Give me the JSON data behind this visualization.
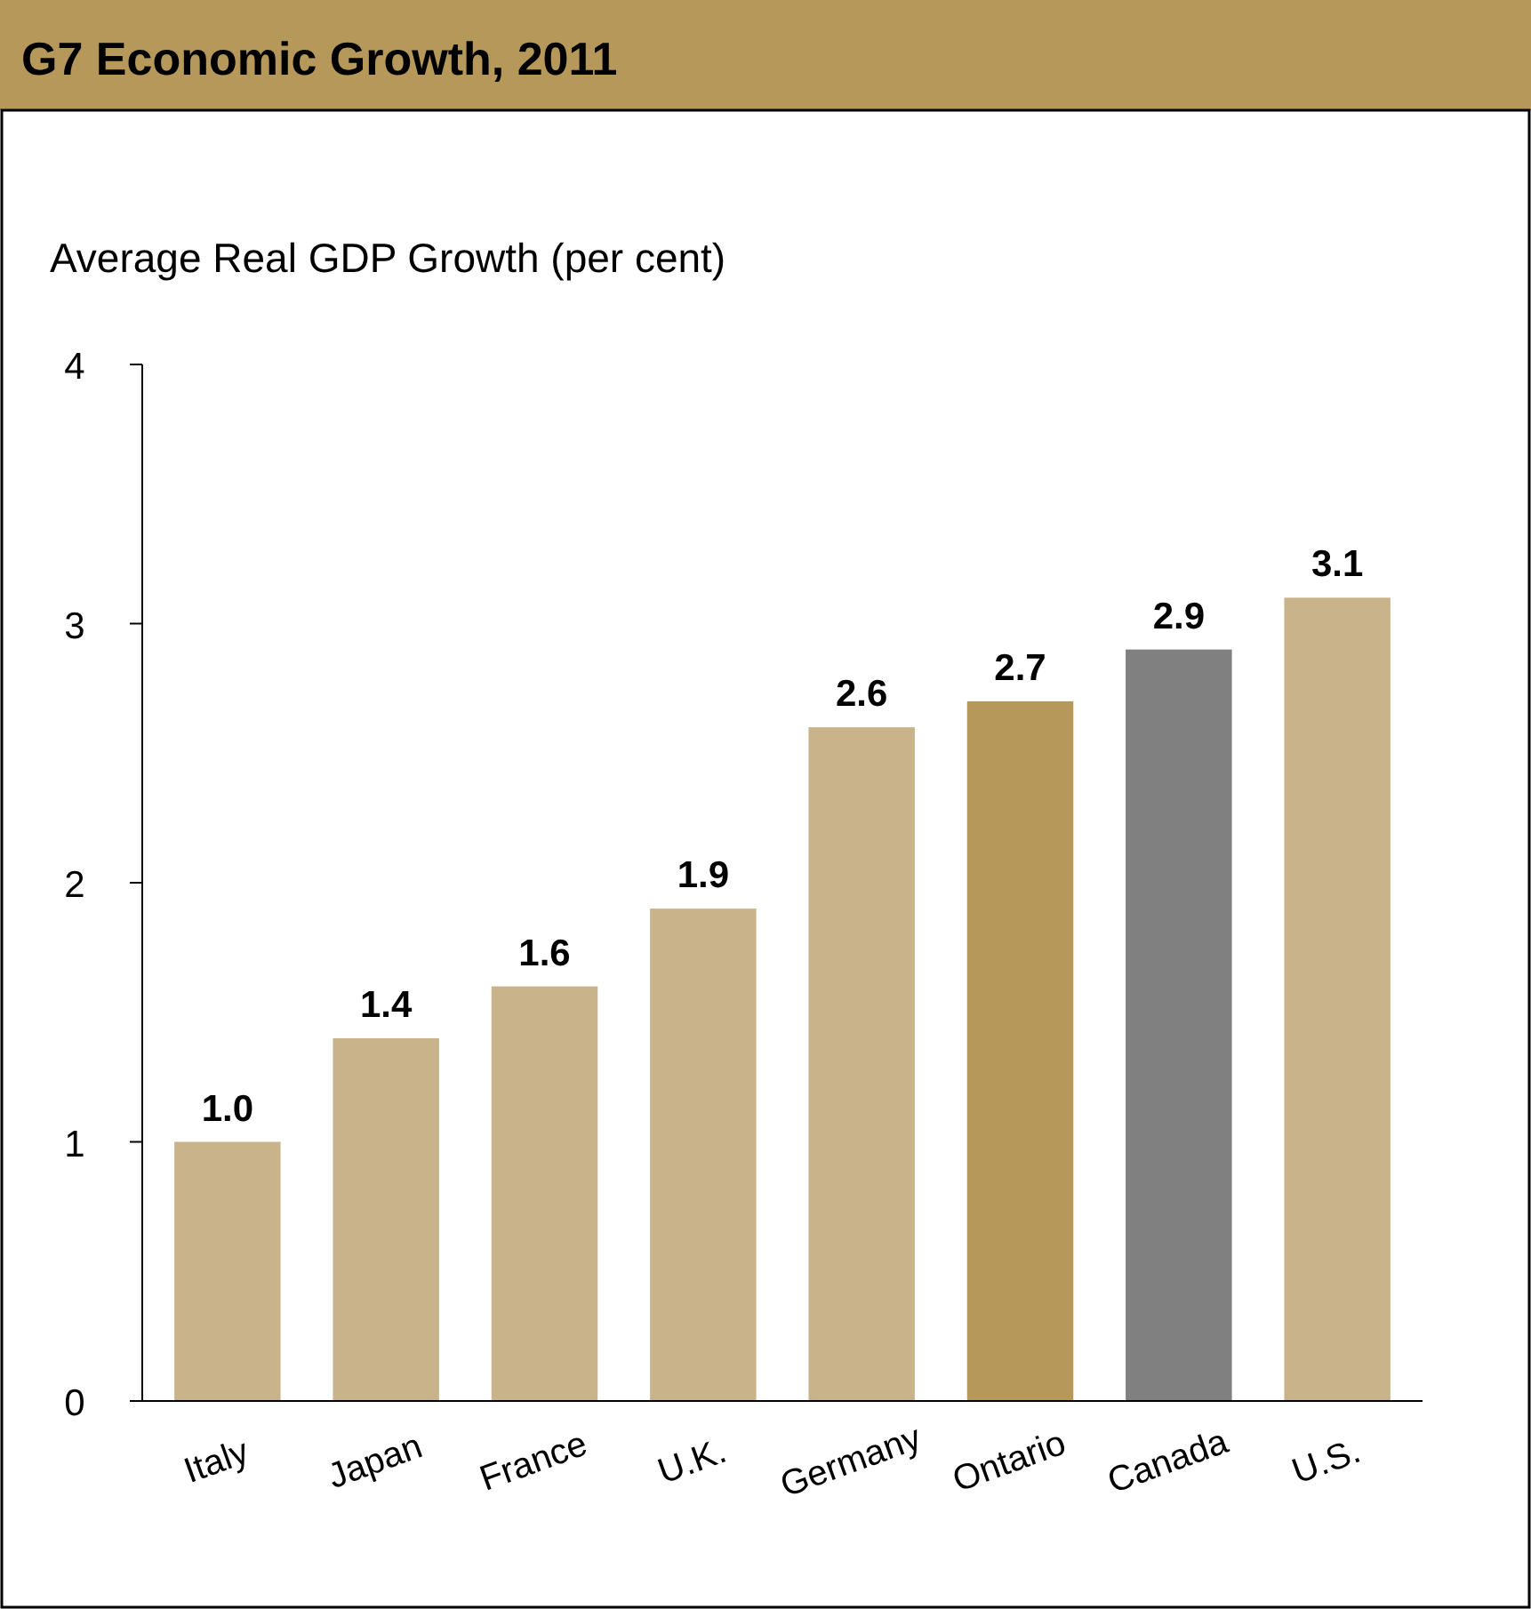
{
  "chart_data": {
    "type": "bar",
    "title": "G7 Economic Growth, 2011",
    "ylabel": "Average Real GDP Growth (per cent)",
    "categories": [
      "Italy",
      "Japan",
      "France",
      "U.K.",
      "Germany",
      "Ontario",
      "Canada",
      "U.S."
    ],
    "values": [
      1.0,
      1.4,
      1.6,
      1.9,
      2.6,
      2.7,
      2.9,
      3.1
    ],
    "colors": [
      "#c9b38b",
      "#c9b38b",
      "#c9b38b",
      "#c9b38b",
      "#c9b38b",
      "#b5985a",
      "#808080",
      "#c9b38b"
    ],
    "value_labels": [
      "1.0",
      "1.4",
      "1.6",
      "1.9",
      "2.6",
      "2.7",
      "2.9",
      "3.1"
    ],
    "ylim": [
      0,
      4
    ],
    "yticks": [
      0,
      1,
      2,
      3,
      4
    ]
  }
}
